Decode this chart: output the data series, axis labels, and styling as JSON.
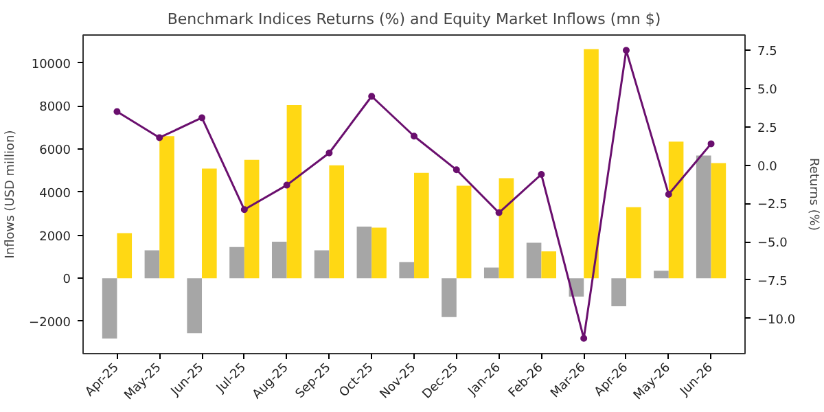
{
  "chart_data": {
    "type": "bar",
    "title": "Benchmark Indices Returns (%) and Equity Market Inflows (mn $)",
    "ylabel": "Inflows (USD million)",
    "y2label": "Returns (%)",
    "categories": [
      "Apr-25",
      "May-25",
      "Jun-25",
      "Jul-25",
      "Aug-25",
      "Sep-25",
      "Oct-25",
      "Nov-25",
      "Dec-25",
      "Jan-26",
      "Feb-26",
      "Mar-26",
      "Apr-26",
      "May-26",
      "Jun-26"
    ],
    "series": [
      {
        "color": "#a6a6a6",
        "values": [
          -2800,
          1300,
          -2550,
          1450,
          1700,
          1300,
          2400,
          750,
          -1800,
          500,
          1650,
          -850,
          -1300,
          350,
          5700
        ]
      },
      {
        "color": "#ffd814",
        "values": [
          2100,
          6600,
          5100,
          5500,
          8050,
          5250,
          2350,
          4900,
          4300,
          4650,
          1250,
          10650,
          3300,
          6350,
          5350
        ]
      },
      {
        "type": "line",
        "axis": "y2",
        "color": "#6a0f6e",
        "marker": "circle",
        "values": [
          3.5,
          1.8,
          3.1,
          -2.9,
          -1.3,
          0.8,
          4.5,
          1.9,
          -0.3,
          -3.1,
          -0.6,
          -11.3,
          7.5,
          -1.9,
          1.4
        ]
      }
    ],
    "ylim": [
      -3500,
      11300
    ],
    "yticks": [
      {
        "value": -2000,
        "label": "−2000"
      },
      0,
      2000,
      4000,
      6000,
      8000,
      10000
    ],
    "y2lim": [
      -12.3,
      8.5
    ],
    "y2ticks": [
      {
        "value": -10,
        "label": "−10.0"
      },
      {
        "value": -7.5,
        "label": "−7.5"
      },
      {
        "value": -5,
        "label": "−5.0"
      },
      {
        "value": -2.5,
        "label": "−2.5"
      },
      {
        "value": 0,
        "label": "0.0"
      },
      2.5,
      {
        "value": 5,
        "label": "5.0"
      },
      7.5
    ],
    "grid": false
  }
}
